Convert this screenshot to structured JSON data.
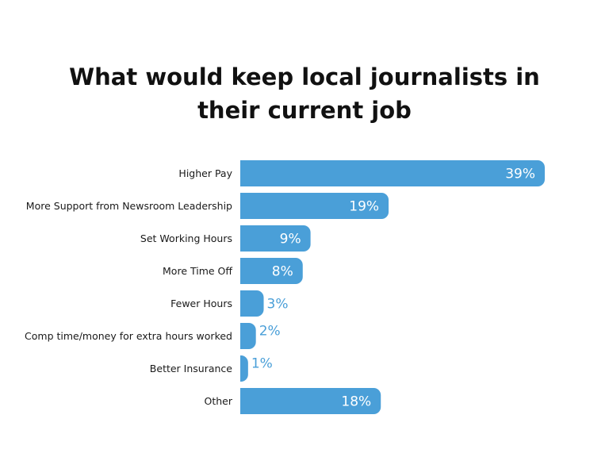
{
  "chart_data": {
    "type": "bar",
    "orientation": "horizontal",
    "title_lines": [
      "What would keep local journalists in",
      "their current job"
    ],
    "categories": [
      "Higher Pay",
      "More Support from Newsroom Leadership",
      "Set Working Hours",
      "More Time Off",
      "Fewer Hours",
      "Comp time/money for extra hours worked",
      "Better Insurance",
      "Other"
    ],
    "values": [
      39,
      19,
      9,
      8,
      3,
      2,
      1,
      18
    ],
    "value_labels": [
      "39%",
      "19%",
      "9%",
      "8%",
      "3%",
      "2%",
      "1%",
      "18%"
    ],
    "xlim": [
      0,
      39
    ],
    "grid": false,
    "legend": "none",
    "colors": {
      "bar": "#4a9fd8",
      "label_inside": "#ffffff",
      "label_outside": "#4a9fd8"
    }
  }
}
